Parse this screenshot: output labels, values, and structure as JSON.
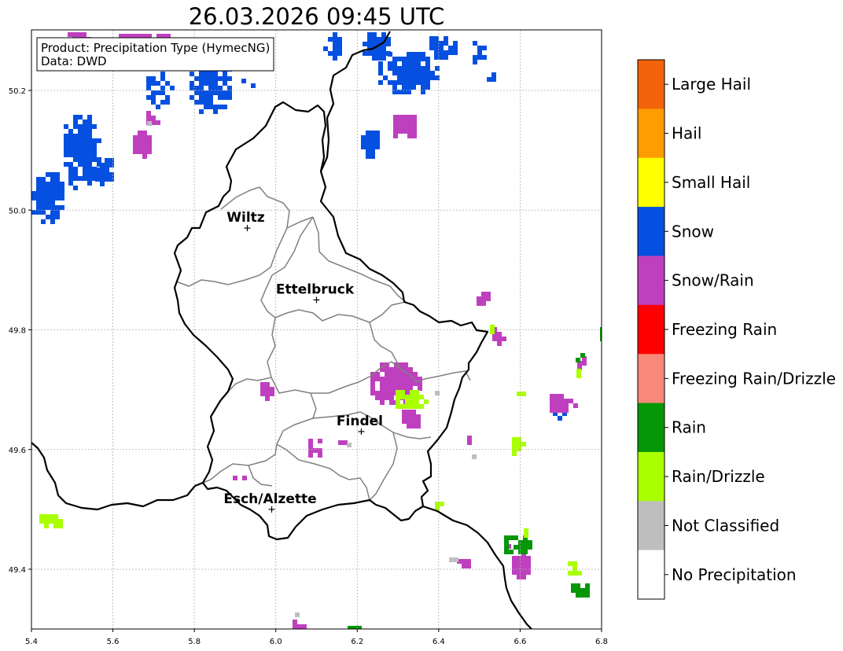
{
  "title": "26.03.2026 09:45 UTC",
  "info_box": {
    "product_line": "Product: Precipitation Type (HymecNG)",
    "data_line": "Data: DWD"
  },
  "axes": {
    "lon_ticks": [
      "5.4",
      "5.6",
      "5.8",
      "6.0",
      "6.2",
      "6.4",
      "6.6",
      "6.8"
    ],
    "lat_ticks": [
      "49.4",
      "49.6",
      "49.8",
      "50.0",
      "50.2"
    ]
  },
  "cities": [
    {
      "name": "Wiltz",
      "lon": 5.93,
      "lat": 49.97
    },
    {
      "name": "Ettelbruck",
      "lon": 6.1,
      "lat": 49.85
    },
    {
      "name": "Findel",
      "lon": 6.21,
      "lat": 49.63
    },
    {
      "name": "Esch/Alzette",
      "lon": 5.99,
      "lat": 49.5
    }
  ],
  "legend": {
    "categories": [
      {
        "label": "Large Hail",
        "color": "#f2640c"
      },
      {
        "label": "Hail",
        "color": "#ff9c00"
      },
      {
        "label": "Small Hail",
        "color": "#ffff00"
      },
      {
        "label": "Snow",
        "color": "#0550e0"
      },
      {
        "label": "Snow/Rain",
        "color": "#bf40bf"
      },
      {
        "label": "Freezing Rain",
        "color": "#ff0000"
      },
      {
        "label": "Freezing Rain/Drizzle",
        "color": "#f88878"
      },
      {
        "label": "Rain",
        "color": "#069706"
      },
      {
        "label": "Rain/Drizzle",
        "color": "#aaff00"
      },
      {
        "label": "Not Classified",
        "color": "#bebebe"
      },
      {
        "label": "No Precipitation",
        "color": "#ffffff"
      }
    ]
  },
  "colors": {
    "snow": "#0550e0",
    "snow_rain": "#bf40bf",
    "rain": "#069706",
    "rain_drizzle": "#aaff00",
    "not_classified": "#bebebe",
    "grid": "#b0b0b0",
    "border": "#000000",
    "canton": "#808080"
  }
}
